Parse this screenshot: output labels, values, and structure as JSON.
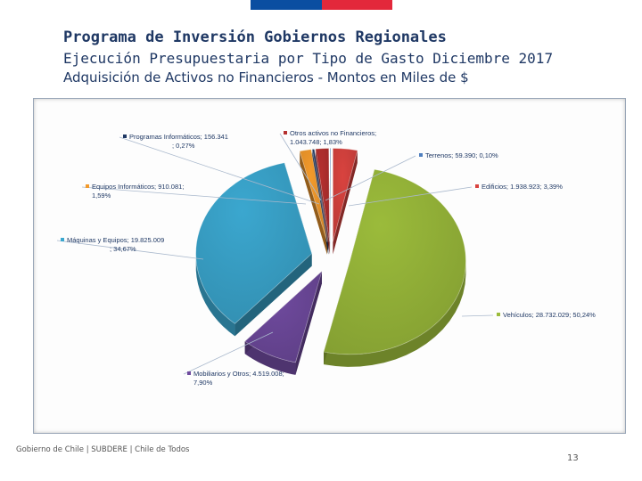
{
  "header": {
    "title": "Programa de Inversión Gobiernos Regionales",
    "subtitle": "Ejecución Presupuestaria por Tipo de Gasto Diciembre 2017",
    "subtitle2": "Adquisición de Activos no Financieros - Montos en Miles de $"
  },
  "brand_colors": {
    "bar_left": "#0a4ea1",
    "bar_right": "#e3283b"
  },
  "chart_data": {
    "type": "pie",
    "title": "",
    "unit": "Miles de $",
    "slices": [
      {
        "name": "Edificios",
        "value": 1938923,
        "percent": 3.39,
        "color": "#d9433f",
        "label_line1": "Edificios; 1.938.923; 3,39%",
        "label_line2": ""
      },
      {
        "name": "Vehículos",
        "value": 28732029,
        "percent": 50.24,
        "color": "#9bbb3b",
        "label_line1": "Vehículos; 28.732.029; 50,24%",
        "label_line2": ""
      },
      {
        "name": "Mobiliarios y Otros",
        "value": 4519008,
        "percent": 7.9,
        "color": "#6f4a9e",
        "label_line1": "Mobiliarios y Otros; 4.519.008;",
        "label_line2": "7,90%"
      },
      {
        "name": "Máquinas y Equipos",
        "value": 19825009,
        "percent": 34.67,
        "color": "#3ba7cf",
        "label_line1": "Máquinas y Equipos; 19.825.009",
        "label_line2": "; 34,67%"
      },
      {
        "name": "Equipos Informáticos",
        "value": 910081,
        "percent": 1.59,
        "color": "#f39a2b",
        "label_line1": "Equipos Informáticos; 910.081;",
        "label_line2": "1,59%"
      },
      {
        "name": "Programas Informáticos",
        "value": 156341,
        "percent": 0.27,
        "color": "#1f3864",
        "label_line1": "Programas Informáticos; 156.341",
        "label_line2": "; 0,27%"
      },
      {
        "name": "Otros activos no Financieros",
        "value": 1043748,
        "percent": 1.83,
        "color": "#b5302f",
        "label_line1": "Otros activos no Financieros;",
        "label_line2": "1.043.748; 1,83%"
      },
      {
        "name": "Terrenos",
        "value": 59390,
        "percent": 0.1,
        "color": "#4f7fbf",
        "label_line1": "Terrenos; 59.390; 0,10%",
        "label_line2": ""
      }
    ]
  },
  "footer": {
    "text": "Gobierno de Chile | SUBDERE | Chile de Todos",
    "page_number": "13"
  }
}
